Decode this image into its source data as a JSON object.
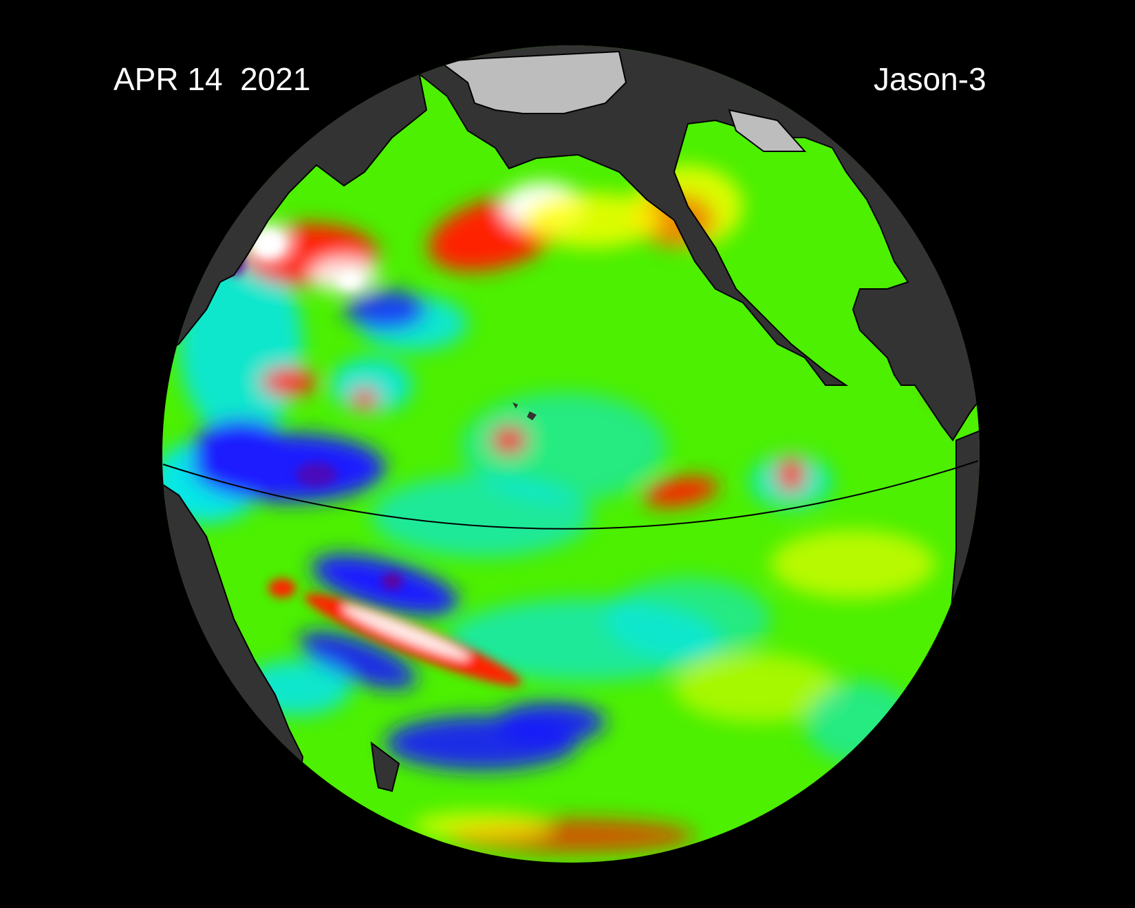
{
  "header": {
    "date_label": "APR 14  2021",
    "satellite_label": "Jason-3"
  },
  "map": {
    "projection": "orthographic",
    "region": "Pacific Ocean",
    "variable": "sea surface height anomaly",
    "colors": {
      "background": "#000000",
      "land": "#333333",
      "ice": "#bdbdbd",
      "neutral": "#4cf000",
      "low": "#1a1aff",
      "very_low": "#6a0090",
      "mid_low": "#00e5ff",
      "mid_high": "#ffff00",
      "high": "#ff2000",
      "very_high": "#ffffff",
      "equator_line": "#000000"
    }
  }
}
